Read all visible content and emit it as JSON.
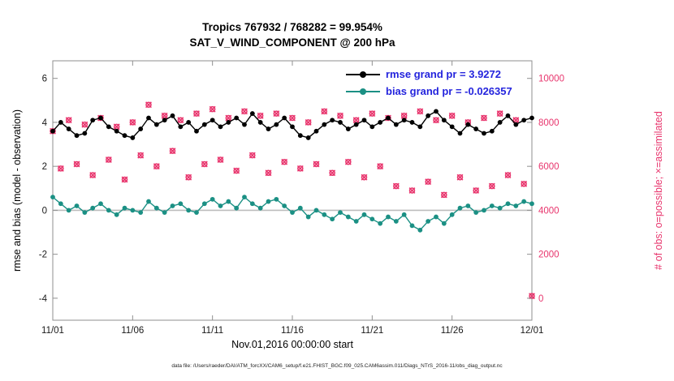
{
  "colors": {
    "rmse": "#000000",
    "bias": "#1b9084",
    "obs": "#e8356d",
    "legend_text": "#2424dd",
    "zero_line": "#bdbdbd",
    "axis_box": "#8f8f8f",
    "tick_label": "#1a1a1a"
  },
  "chart_data": {
    "type": "line",
    "title_line1": "Tropics 767932 / 768282 = 99.954%",
    "title_line2": "SAT_V_WIND_COMPONENT @ 200 hPa",
    "xlabel": "Nov.01,2016 00:00:00 start",
    "ylabel_left": "rmse and bias (model - observation)",
    "ylabel_right": "# of obs: o=possible; ×=assimilated",
    "footer": "data file: /Users/raeder/DAI/ATM_forcXX/CAM6_setup/f.e21.FHIST_BGC.f09_025.CAM6assim.011/Diags_NTrS_2016-11/obs_diag_output.nc",
    "legend": [
      {
        "series": "rmse",
        "label": "rmse grand pr = 3.9272"
      },
      {
        "series": "bias",
        "label": "bias grand pr = -0.026357"
      }
    ],
    "xlim": [
      0,
      30
    ],
    "ylim_left": [
      -5,
      6.8
    ],
    "right_axis": {
      "divisor": 1000,
      "offset": 4
    },
    "x_ticks": [
      0,
      5,
      10,
      15,
      20,
      25,
      30
    ],
    "x_tick_labels": [
      "11/01",
      "11/06",
      "11/11",
      "11/16",
      "11/21",
      "11/26",
      "12/01"
    ],
    "y_ticks_left": [
      -4,
      -2,
      0,
      2,
      4,
      6
    ],
    "y_ticks_right": [
      0,
      2000,
      4000,
      6000,
      8000,
      10000
    ],
    "x": [
      0,
      0.5,
      1,
      1.5,
      2,
      2.5,
      3,
      3.5,
      4,
      4.5,
      5,
      5.5,
      6,
      6.5,
      7,
      7.5,
      8,
      8.5,
      9,
      9.5,
      10,
      10.5,
      11,
      11.5,
      12,
      12.5,
      13,
      13.5,
      14,
      14.5,
      15,
      15.5,
      16,
      16.5,
      17,
      17.5,
      18,
      18.5,
      19,
      19.5,
      20,
      20.5,
      21,
      21.5,
      22,
      22.5,
      23,
      23.5,
      24,
      24.5,
      25,
      25.5,
      26,
      26.5,
      27,
      27.5,
      28,
      28.5,
      29,
      29.5,
      30
    ],
    "rmse": [
      3.6,
      4.0,
      3.7,
      3.4,
      3.5,
      4.1,
      4.2,
      3.8,
      3.6,
      3.4,
      3.3,
      3.7,
      4.2,
      3.9,
      4.1,
      4.3,
      3.8,
      4.0,
      3.6,
      3.9,
      4.1,
      3.8,
      4.0,
      4.2,
      3.9,
      4.4,
      4.0,
      3.7,
      3.9,
      4.2,
      3.8,
      3.4,
      3.3,
      3.6,
      3.9,
      4.1,
      4.0,
      3.7,
      3.9,
      4.1,
      3.8,
      4.0,
      4.2,
      3.9,
      4.1,
      4.0,
      3.8,
      4.3,
      4.5,
      4.1,
      3.8,
      3.5,
      3.9,
      3.7,
      3.5,
      3.6,
      4.0,
      4.3,
      3.9,
      4.1,
      4.2
    ],
    "bias": [
      0.6,
      0.3,
      0.0,
      0.2,
      -0.1,
      0.1,
      0.3,
      0.0,
      -0.2,
      0.1,
      0.0,
      -0.1,
      0.4,
      0.1,
      -0.1,
      0.2,
      0.3,
      0.0,
      -0.1,
      0.3,
      0.5,
      0.2,
      0.4,
      0.1,
      0.6,
      0.3,
      0.1,
      0.4,
      0.5,
      0.2,
      -0.1,
      0.1,
      -0.3,
      0.0,
      -0.2,
      -0.4,
      -0.1,
      -0.3,
      -0.5,
      -0.2,
      -0.4,
      -0.6,
      -0.3,
      -0.5,
      -0.2,
      -0.7,
      -0.9,
      -0.5,
      -0.3,
      -0.6,
      -0.2,
      0.1,
      0.2,
      -0.1,
      0.0,
      0.2,
      0.1,
      0.3,
      0.2,
      0.4,
      0.3
    ],
    "possible": [
      7600,
      5900,
      8100,
      6100,
      7900,
      5600,
      8200,
      6300,
      7800,
      5400,
      8000,
      6500,
      8800,
      6000,
      8300,
      6700,
      8100,
      5500,
      8400,
      6100,
      8600,
      6300,
      8200,
      5800,
      8500,
      6500,
      8300,
      5700,
      8400,
      6200,
      8200,
      5900,
      8000,
      6100,
      8500,
      5700,
      8300,
      6200,
      8100,
      5500,
      8400,
      6000,
      8200,
      5100,
      8300,
      4900,
      8500,
      5300,
      8100,
      4700,
      8300,
      5500,
      8000,
      4900,
      8200,
      5100,
      8400,
      5600,
      8100,
      5200,
      100
    ],
    "assimilated": [
      7600,
      5898,
      8100,
      6100,
      7898,
      5600,
      8200,
      6300,
      7800,
      5400,
      8000,
      6498,
      8800,
      6000,
      8300,
      6700,
      8100,
      5500,
      8400,
      6100,
      8598,
      6300,
      8200,
      5800,
      8500,
      6500,
      8300,
      5700,
      8400,
      6200,
      8200,
      5900,
      8000,
      6100,
      8498,
      5700,
      8300,
      6200,
      8100,
      5500,
      8400,
      6000,
      8200,
      5100,
      8300,
      4900,
      8500,
      5300,
      8100,
      4700,
      8300,
      5500,
      8000,
      4900,
      8200,
      5100,
      8400,
      5600,
      8100,
      5200,
      100
    ]
  }
}
